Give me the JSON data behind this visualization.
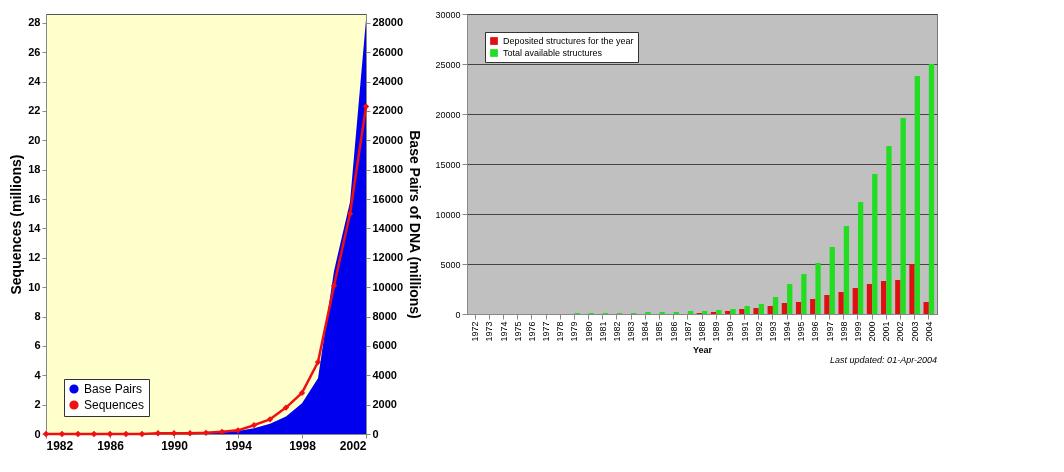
{
  "chart_data": [
    {
      "type": "line",
      "ylabel": "Sequences (millions)",
      "y2label": "Base Pairs of DNA (millions)",
      "x": [
        1982,
        1983,
        1984,
        1985,
        1986,
        1987,
        1988,
        1989,
        1990,
        1991,
        1992,
        1993,
        1994,
        1995,
        1996,
        1997,
        1998,
        1999,
        2000,
        2001,
        2002
      ],
      "xlim": [
        1982,
        2002
      ],
      "xticks": [
        1982,
        1986,
        1990,
        1994,
        1998,
        2002
      ],
      "ylim": [
        0,
        28.6
      ],
      "yticks": [
        0,
        2,
        4,
        6,
        8,
        10,
        12,
        14,
        16,
        18,
        20,
        22,
        24,
        26,
        28
      ],
      "y2lim": [
        0,
        28600
      ],
      "y2ticks": [
        0,
        2000,
        4000,
        6000,
        8000,
        10000,
        12000,
        14000,
        16000,
        18000,
        20000,
        22000,
        24000,
        26000,
        28000
      ],
      "legend": "bottom left",
      "grid": false,
      "series": [
        {
          "name": "Base Pairs",
          "type": "area",
          "axis": "y2",
          "color": "#0000ee",
          "values": [
            0,
            0,
            0,
            0,
            0,
            0,
            0,
            0,
            0,
            0,
            100,
            100,
            200,
            400,
            700,
            1200,
            2100,
            3800,
            11100,
            15800,
            28200
          ]
        },
        {
          "name": "Sequences",
          "type": "line",
          "marker": "diamond",
          "color": "#ee1111",
          "values": [
            0,
            0,
            0,
            0,
            0,
            0,
            0,
            0.05,
            0.05,
            0.05,
            0.08,
            0.15,
            0.25,
            0.6,
            1,
            1.8,
            2.8,
            4.9,
            10.1,
            15,
            22.3
          ]
        }
      ]
    },
    {
      "type": "bar",
      "xlabel": "Year",
      "categories": [
        "1972",
        "1973",
        "1974",
        "1975",
        "1976",
        "1977",
        "1978",
        "1979",
        "1980",
        "1981",
        "1982",
        "1983",
        "1984",
        "1985",
        "1986",
        "1987",
        "1988",
        "1989",
        "1990",
        "1991",
        "1992",
        "1993",
        "1994",
        "1995",
        "1996",
        "1997",
        "1998",
        "1999",
        "2000",
        "2001",
        "2002",
        "2003",
        "2004"
      ],
      "ylim": [
        0,
        30000
      ],
      "yticks": [
        0,
        5000,
        10000,
        15000,
        20000,
        25000,
        30000
      ],
      "grid": "y",
      "legend": "top left",
      "annotations": [
        "Last updated: 01-Apr-2004"
      ],
      "series": [
        {
          "name": "Deposited structures for the year",
          "color": "#dd1111",
          "values": [
            0,
            0,
            0,
            0,
            0,
            0,
            0,
            0,
            0,
            0,
            0,
            0,
            0,
            0,
            0,
            0,
            100,
            200,
            300,
            500,
            600,
            800,
            1100,
            1200,
            1500,
            1900,
            2200,
            2600,
            3000,
            3300,
            3400,
            5000,
            1200
          ]
        },
        {
          "name": "Total available structures",
          "color": "#22dd22",
          "values": [
            0,
            0,
            0,
            0,
            0,
            0,
            0,
            100,
            100,
            100,
            100,
            100,
            200,
            200,
            200,
            300,
            300,
            400,
            500,
            800,
            1000,
            1700,
            3000,
            4000,
            5100,
            6700,
            8800,
            11200,
            14000,
            16800,
            19600,
            23800,
            25000
          ]
        }
      ]
    }
  ]
}
